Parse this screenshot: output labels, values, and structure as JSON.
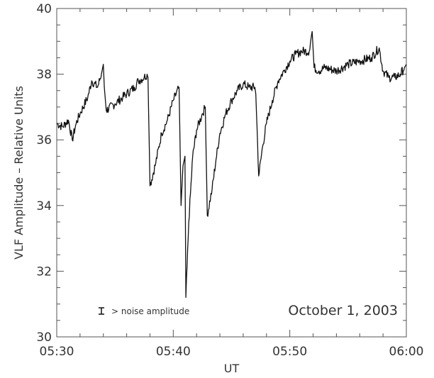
{
  "chart_data": {
    "type": "line",
    "xlabel": "UT",
    "ylabel": "VLF Amplitude – Relative Units",
    "xlim": [
      "05:30",
      "06:00"
    ],
    "ylim": [
      30,
      40
    ],
    "x_ticks": [
      "05:30",
      "05:40",
      "05:50",
      "06:00"
    ],
    "y_ticks": [
      30,
      32,
      34,
      36,
      38,
      40
    ],
    "grid": false,
    "annotations": {
      "date": "October 1, 2003",
      "noise": "> noise amplitude"
    },
    "series": [
      {
        "color": "#111111",
        "points": [
          [
            "05:30",
            36.5
          ],
          [
            "05:30:30",
            36.4
          ],
          [
            "05:31",
            36.6
          ],
          [
            "05:31:20",
            36.0
          ],
          [
            "05:31:40",
            36.5
          ],
          [
            "05:32",
            36.8
          ],
          [
            "05:32:40",
            37.3
          ],
          [
            "05:33",
            37.8
          ],
          [
            "05:33:30",
            37.6
          ],
          [
            "05:33:50",
            38.0
          ],
          [
            "05:34",
            38.3
          ],
          [
            "05:34:05",
            37.6
          ],
          [
            "05:34:15",
            36.9
          ],
          [
            "05:35",
            37.1
          ],
          [
            "05:35:40",
            37.3
          ],
          [
            "05:36",
            37.4
          ],
          [
            "05:36:40",
            37.6
          ],
          [
            "05:37",
            37.8
          ],
          [
            "05:37:30",
            37.9
          ],
          [
            "05:37:45",
            38.0
          ],
          [
            "05:37:50",
            37.9
          ],
          [
            "05:38",
            34.6
          ],
          [
            "05:38:30",
            35.3
          ],
          [
            "05:39",
            36.2
          ],
          [
            "05:39:30",
            36.6
          ],
          [
            "05:40",
            37.2
          ],
          [
            "05:40:30",
            37.6
          ],
          [
            "05:40:40",
            34.0
          ],
          [
            "05:40:50",
            35.2
          ],
          [
            "05:41",
            35.5
          ],
          [
            "05:41:05",
            31.2
          ],
          [
            "05:41:20",
            33.5
          ],
          [
            "05:41:40",
            35.5
          ],
          [
            "05:42",
            36.3
          ],
          [
            "05:42:30",
            36.8
          ],
          [
            "05:42:45",
            37.0
          ],
          [
            "05:42:55",
            33.7
          ],
          [
            "05:43:20",
            34.5
          ],
          [
            "05:43:40",
            35.4
          ],
          [
            "05:44",
            36.2
          ],
          [
            "05:44:30",
            36.8
          ],
          [
            "05:45",
            37.2
          ],
          [
            "05:45:30",
            37.5
          ],
          [
            "05:46",
            37.7
          ],
          [
            "05:46:30",
            37.6
          ],
          [
            "05:47",
            37.6
          ],
          [
            "05:47:05",
            37.4
          ],
          [
            "05:47:20",
            34.9
          ],
          [
            "05:47:40",
            35.8
          ],
          [
            "05:48",
            36.5
          ],
          [
            "05:48:30",
            37.2
          ],
          [
            "05:49",
            37.8
          ],
          [
            "05:49:30",
            38.1
          ],
          [
            "05:50",
            38.4
          ],
          [
            "05:50:30",
            38.6
          ],
          [
            "05:51",
            38.7
          ],
          [
            "05:51:40",
            38.7
          ],
          [
            "05:51:55",
            39.3
          ],
          [
            "05:52:05",
            38.2
          ],
          [
            "05:52:30",
            38.1
          ],
          [
            "05:53",
            38.2
          ],
          [
            "05:54",
            38.1
          ],
          [
            "05:55",
            38.3
          ],
          [
            "05:56",
            38.4
          ],
          [
            "05:57",
            38.5
          ],
          [
            "05:57:40",
            38.8
          ],
          [
            "05:58",
            38.1
          ],
          [
            "05:58:30",
            37.9
          ],
          [
            "05:59",
            37.9
          ],
          [
            "05:59:30",
            38.0
          ],
          [
            "05:59:50",
            38.2
          ],
          [
            "06:00",
            38.3
          ]
        ]
      }
    ]
  }
}
